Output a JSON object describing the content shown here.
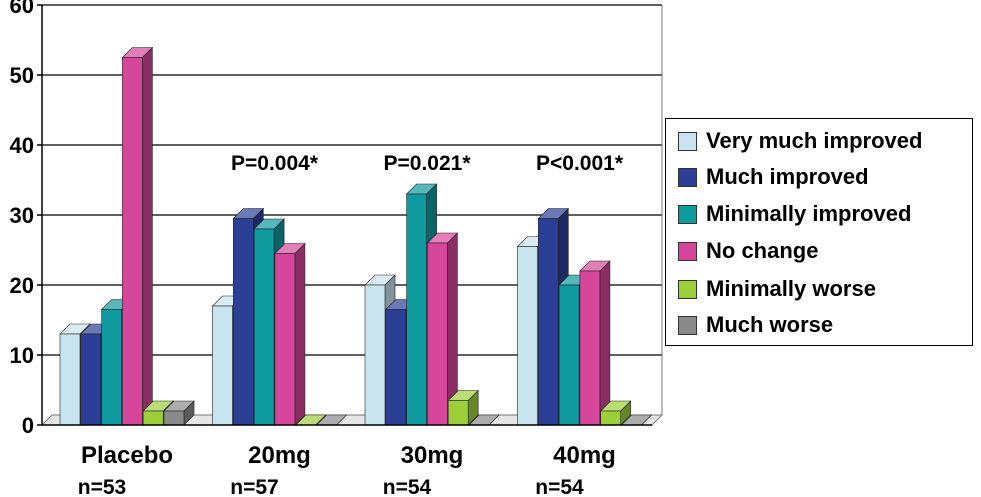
{
  "chart_data": {
    "type": "bar",
    "ylim": [
      0,
      60
    ],
    "yticks": [
      0,
      10,
      20,
      30,
      40,
      50,
      60
    ],
    "categories": [
      "Placebo",
      "20mg",
      "30mg",
      "40mg"
    ],
    "category_counts": [
      "n=53",
      "n=57",
      "n=54",
      "n=54"
    ],
    "annotations": [
      "",
      "P=0.004*",
      "P=0.021*",
      "P<0.001*"
    ],
    "grid": true,
    "legend_position": "right",
    "series": [
      {
        "name": "Very much improved",
        "color": "#c8e4ee",
        "values": [
          13,
          17,
          20,
          25.5
        ]
      },
      {
        "name": "Much improved",
        "color": "#2b3f96",
        "values": [
          13,
          29.5,
          16.5,
          29.5
        ]
      },
      {
        "name": "Minimally improved",
        "color": "#0e9a9e",
        "values": [
          16.5,
          28,
          33,
          20
        ]
      },
      {
        "name": "No change",
        "color": "#d6469a",
        "values": [
          52.5,
          24.5,
          26,
          22
        ]
      },
      {
        "name": "Minimally worse",
        "color": "#9ccf3a",
        "values": [
          2,
          0,
          3.5,
          2
        ]
      },
      {
        "name": "Much worse",
        "color": "#8a8a8a",
        "values": [
          2,
          0,
          0,
          0
        ]
      }
    ]
  }
}
